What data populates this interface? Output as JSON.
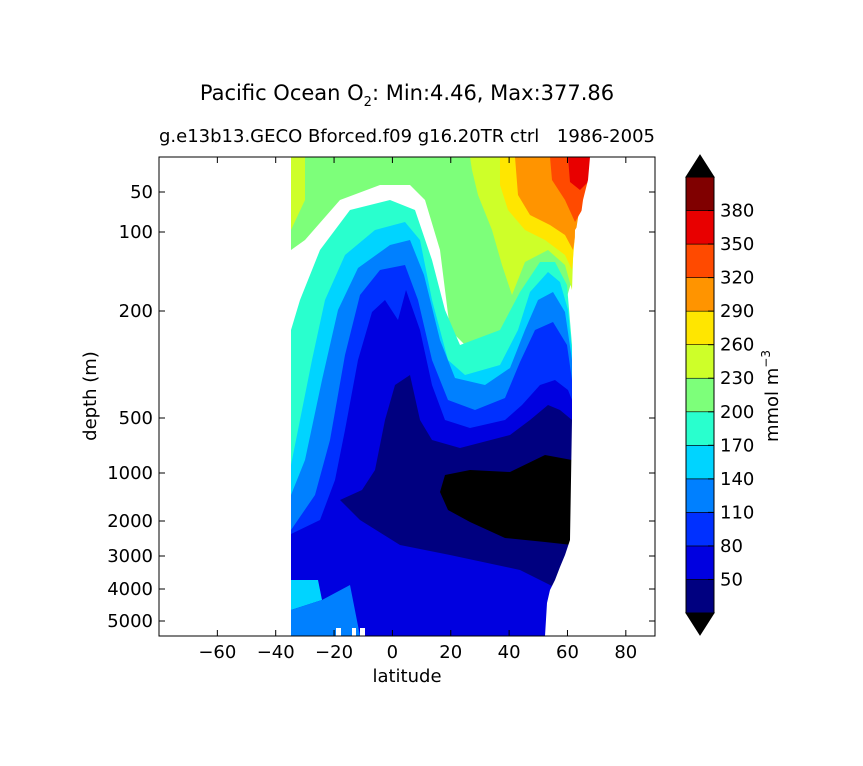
{
  "chart_data": {
    "type": "contour",
    "title_main": "Pacific Ocean O",
    "title_sub": "2",
    "title_rest": ": Min:4.46, Max:377.86",
    "subtitle_left": "g.e13b13.GECO Bforced.f09 g16.20TR ctrl",
    "subtitle_right": "1986-2005",
    "xlabel": "latitude",
    "ylabel": "depth (m)",
    "xlim": [
      -80,
      90
    ],
    "x_ticks": [
      -60,
      -40,
      -20,
      0,
      20,
      40,
      60,
      80
    ],
    "x_tick_labels": [
      "−60",
      "−40",
      "−20",
      "0",
      "20",
      "40",
      "60",
      "80"
    ],
    "y_ticks": [
      50,
      100,
      200,
      500,
      1000,
      2000,
      3000,
      4000,
      5000
    ],
    "y_tick_labels": [
      "50",
      "100",
      "200",
      "500",
      "1000",
      "2000",
      "3000",
      "4000",
      "5000"
    ],
    "colorbar": {
      "label": "mmol m",
      "label_sup": "−3",
      "levels": [
        20,
        50,
        80,
        110,
        140,
        170,
        200,
        230,
        260,
        290,
        320,
        350,
        380,
        410
      ],
      "tick_labels": [
        "50",
        "80",
        "110",
        "140",
        "170",
        "200",
        "230",
        "260",
        "290",
        "320",
        "350",
        "380"
      ],
      "colors": [
        "#000080",
        "#0000e0",
        "#0030ff",
        "#0080ff",
        "#00d4ff",
        "#29ffce",
        "#7dff7a",
        "#ceff29",
        "#ffe600",
        "#ff9400",
        "#ff4a00",
        "#e80000",
        "#800000"
      ],
      "under_color": "#000000",
      "over_color": "#000000"
    }
  }
}
